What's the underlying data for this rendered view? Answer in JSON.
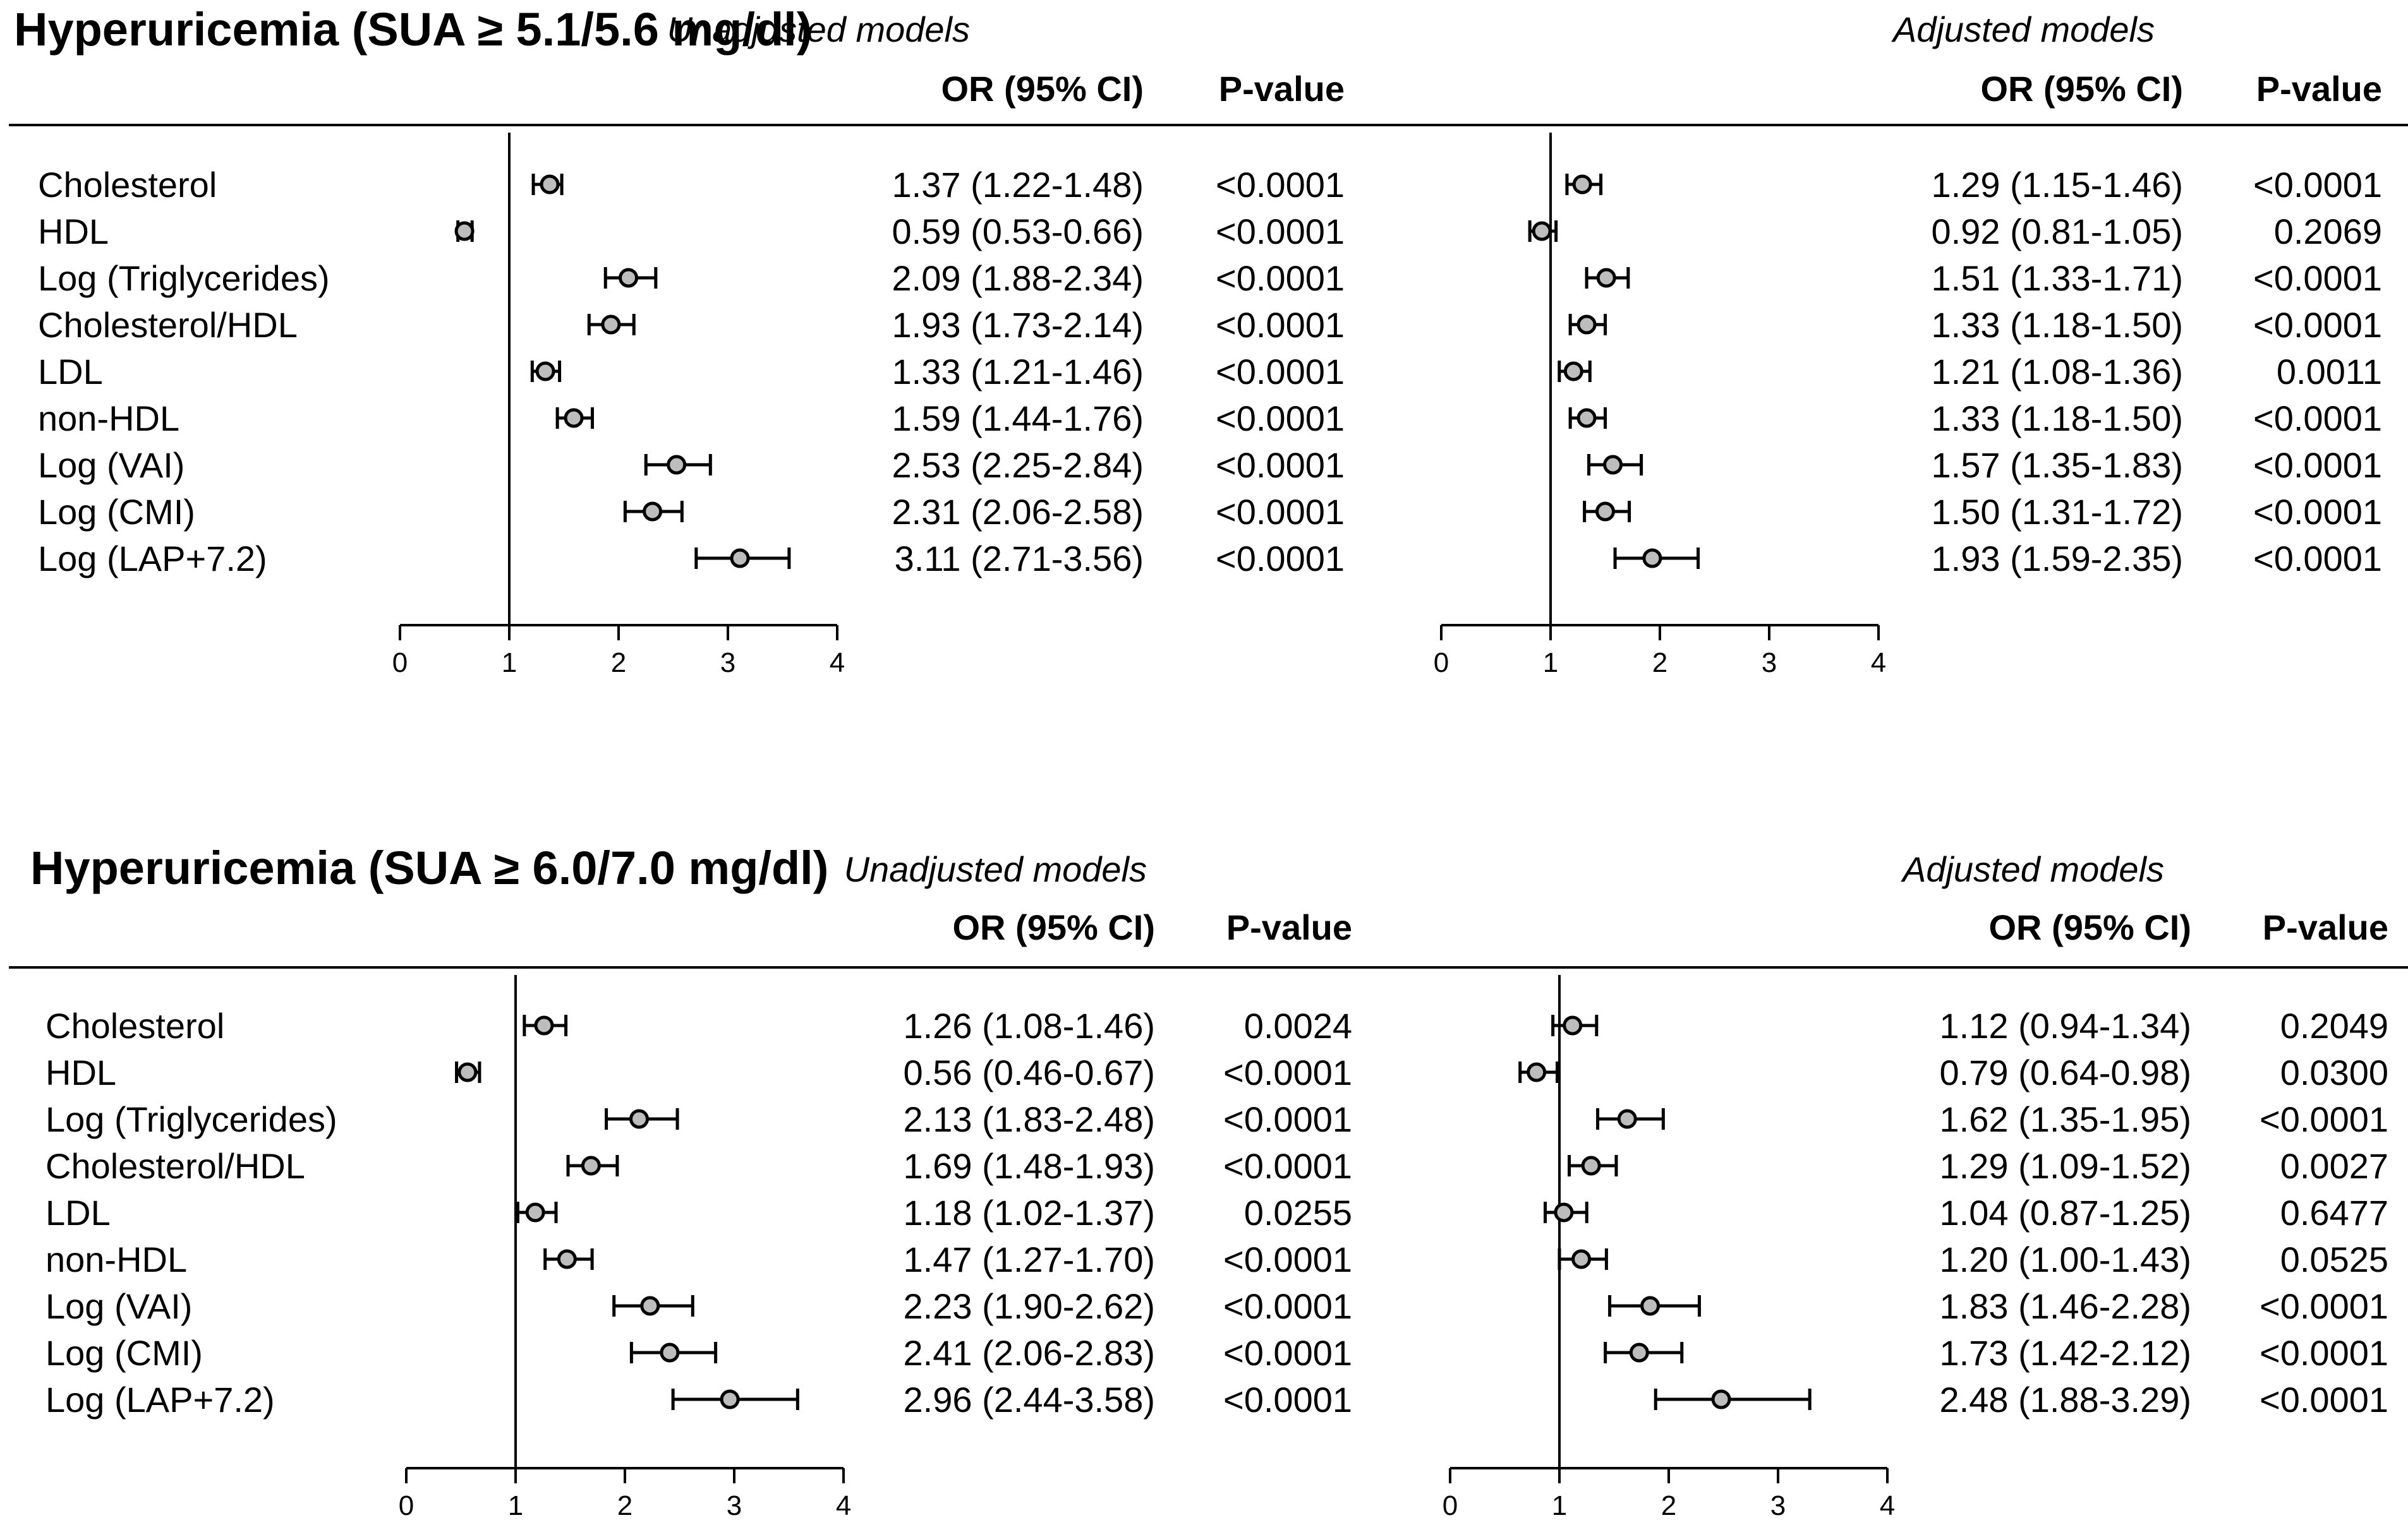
{
  "panels": [
    {
      "title": "Hyperuricemia (SUA ≥ 5.1/5.6 mg/dl)",
      "models": [
        {
          "model_label": "Unadjusted models",
          "or_header": "OR (95% CI)",
          "p_header": "P-value",
          "axis_ticks": [
            "0",
            "1",
            "2",
            "3",
            "4"
          ],
          "rows": [
            {
              "label": "Cholesterol",
              "or_text": "1.37 (1.22-1.48)",
              "or": 1.37,
              "lo": 1.22,
              "hi": 1.48,
              "p": "<0.0001"
            },
            {
              "label": "HDL",
              "or_text": "0.59 (0.53-0.66)",
              "or": 0.59,
              "lo": 0.53,
              "hi": 0.66,
              "p": "<0.0001"
            },
            {
              "label": "Log (Triglycerides)",
              "or_text": "2.09 (1.88-2.34)",
              "or": 2.09,
              "lo": 1.88,
              "hi": 2.34,
              "p": "<0.0001"
            },
            {
              "label": "Cholesterol/HDL",
              "or_text": "1.93 (1.73-2.14)",
              "or": 1.93,
              "lo": 1.73,
              "hi": 2.14,
              "p": "<0.0001"
            },
            {
              "label": "LDL",
              "or_text": "1.33 (1.21-1.46)",
              "or": 1.33,
              "lo": 1.21,
              "hi": 1.46,
              "p": "<0.0001"
            },
            {
              "label": "non-HDL",
              "or_text": "1.59 (1.44-1.76)",
              "or": 1.59,
              "lo": 1.44,
              "hi": 1.76,
              "p": "<0.0001"
            },
            {
              "label": "Log (VAI)",
              "or_text": "2.53 (2.25-2.84)",
              "or": 2.53,
              "lo": 2.25,
              "hi": 2.84,
              "p": "<0.0001"
            },
            {
              "label": "Log (CMI)",
              "or_text": "2.31 (2.06-2.58)",
              "or": 2.31,
              "lo": 2.06,
              "hi": 2.58,
              "p": "<0.0001"
            },
            {
              "label": "Log (LAP+7.2)",
              "or_text": "3.11 (2.71-3.56)",
              "or": 3.11,
              "lo": 2.71,
              "hi": 3.56,
              "p": "<0.0001"
            }
          ]
        },
        {
          "model_label": "Adjusted models",
          "or_header": "OR (95% CI)",
          "p_header": "P-value",
          "axis_ticks": [
            "0",
            "1",
            "2",
            "3",
            "4"
          ],
          "rows": [
            {
              "label": "Cholesterol",
              "or_text": "1.29 (1.15-1.46)",
              "or": 1.29,
              "lo": 1.15,
              "hi": 1.46,
              "p": "<0.0001"
            },
            {
              "label": "HDL",
              "or_text": "0.92 (0.81-1.05)",
              "or": 0.92,
              "lo": 0.81,
              "hi": 1.05,
              "p": "0.2069"
            },
            {
              "label": "Log (Triglycerides)",
              "or_text": "1.51 (1.33-1.71)",
              "or": 1.51,
              "lo": 1.33,
              "hi": 1.71,
              "p": "<0.0001"
            },
            {
              "label": "Cholesterol/HDL",
              "or_text": "1.33 (1.18-1.50)",
              "or": 1.33,
              "lo": 1.18,
              "hi": 1.5,
              "p": "<0.0001"
            },
            {
              "label": "LDL",
              "or_text": "1.21 (1.08-1.36)",
              "or": 1.21,
              "lo": 1.08,
              "hi": 1.36,
              "p": "0.0011"
            },
            {
              "label": "non-HDL",
              "or_text": "1.33 (1.18-1.50)",
              "or": 1.33,
              "lo": 1.18,
              "hi": 1.5,
              "p": "<0.0001"
            },
            {
              "label": "Log (VAI)",
              "or_text": "1.57 (1.35-1.83)",
              "or": 1.57,
              "lo": 1.35,
              "hi": 1.83,
              "p": "<0.0001"
            },
            {
              "label": "Log (CMI)",
              "or_text": "1.50 (1.31-1.72)",
              "or": 1.5,
              "lo": 1.31,
              "hi": 1.72,
              "p": "<0.0001"
            },
            {
              "label": "Log (LAP+7.2)",
              "or_text": "1.93 (1.59-2.35)",
              "or": 1.93,
              "lo": 1.59,
              "hi": 2.35,
              "p": "<0.0001"
            }
          ]
        }
      ]
    },
    {
      "title": "Hyperuricemia (SUA ≥ 6.0/7.0 mg/dl)",
      "models": [
        {
          "model_label": "Unadjusted models",
          "or_header": "OR (95% CI)",
          "p_header": "P-value",
          "axis_ticks": [
            "0",
            "1",
            "2",
            "3",
            "4"
          ],
          "rows": [
            {
              "label": "Cholesterol",
              "or_text": "1.26 (1.08-1.46)",
              "or": 1.26,
              "lo": 1.08,
              "hi": 1.46,
              "p": "0.0024"
            },
            {
              "label": "HDL",
              "or_text": "0.56 (0.46-0.67)",
              "or": 0.56,
              "lo": 0.46,
              "hi": 0.67,
              "p": "<0.0001"
            },
            {
              "label": "Log (Triglycerides)",
              "or_text": "2.13 (1.83-2.48)",
              "or": 2.13,
              "lo": 1.83,
              "hi": 2.48,
              "p": "<0.0001"
            },
            {
              "label": "Cholesterol/HDL",
              "or_text": "1.69 (1.48-1.93)",
              "or": 1.69,
              "lo": 1.48,
              "hi": 1.93,
              "p": "<0.0001"
            },
            {
              "label": "LDL",
              "or_text": "1.18 (1.02-1.37)",
              "or": 1.18,
              "lo": 1.02,
              "hi": 1.37,
              "p": "0.0255"
            },
            {
              "label": "non-HDL",
              "or_text": "1.47 (1.27-1.70)",
              "or": 1.47,
              "lo": 1.27,
              "hi": 1.7,
              "p": "<0.0001"
            },
            {
              "label": "Log (VAI)",
              "or_text": "2.23 (1.90-2.62)",
              "or": 2.23,
              "lo": 1.9,
              "hi": 2.62,
              "p": "<0.0001"
            },
            {
              "label": "Log (CMI)",
              "or_text": "2.41 (2.06-2.83)",
              "or": 2.41,
              "lo": 2.06,
              "hi": 2.83,
              "p": "<0.0001"
            },
            {
              "label": "Log (LAP+7.2)",
              "or_text": "2.96 (2.44-3.58)",
              "or": 2.96,
              "lo": 2.44,
              "hi": 3.58,
              "p": "<0.0001"
            }
          ]
        },
        {
          "model_label": "Adjusted models",
          "or_header": "OR (95% CI)",
          "p_header": "P-value",
          "axis_ticks": [
            "0",
            "1",
            "2",
            "3",
            "4"
          ],
          "rows": [
            {
              "label": "Cholesterol",
              "or_text": "1.12 (0.94-1.34)",
              "or": 1.12,
              "lo": 0.94,
              "hi": 1.34,
              "p": "0.2049"
            },
            {
              "label": "HDL",
              "or_text": "0.79 (0.64-0.98)",
              "or": 0.79,
              "lo": 0.64,
              "hi": 0.98,
              "p": "0.0300"
            },
            {
              "label": "Log (Triglycerides)",
              "or_text": "1.62 (1.35-1.95)",
              "or": 1.62,
              "lo": 1.35,
              "hi": 1.95,
              "p": "<0.0001"
            },
            {
              "label": "Cholesterol/HDL",
              "or_text": "1.29 (1.09-1.52)",
              "or": 1.29,
              "lo": 1.09,
              "hi": 1.52,
              "p": "0.0027"
            },
            {
              "label": "LDL",
              "or_text": "1.04 (0.87-1.25)",
              "or": 1.04,
              "lo": 0.87,
              "hi": 1.25,
              "p": "0.6477"
            },
            {
              "label": "non-HDL",
              "or_text": "1.20 (1.00-1.43)",
              "or": 1.2,
              "lo": 1.0,
              "hi": 1.43,
              "p": "0.0525"
            },
            {
              "label": "Log (VAI)",
              "or_text": "1.83 (1.46-2.28)",
              "or": 1.83,
              "lo": 1.46,
              "hi": 2.28,
              "p": "<0.0001"
            },
            {
              "label": "Log (CMI)",
              "or_text": "1.73 (1.42-2.12)",
              "or": 1.73,
              "lo": 1.42,
              "hi": 2.12,
              "p": "<0.0001"
            },
            {
              "label": "Log (LAP+7.2)",
              "or_text": "2.48 (1.88-3.29)",
              "or": 2.48,
              "lo": 1.88,
              "hi": 3.29,
              "p": "<0.0001"
            }
          ]
        }
      ]
    }
  ],
  "chart_data": [
    {
      "type": "forest",
      "title": "Hyperuricemia (SUA ≥ 5.1/5.6 mg/dl)",
      "subtitle": "Unadjusted models",
      "xlim": [
        0,
        4
      ],
      "reference_line": 1,
      "categories": [
        "Cholesterol",
        "HDL",
        "Log (Triglycerides)",
        "Cholesterol/HDL",
        "LDL",
        "non-HDL",
        "Log (VAI)",
        "Log (CMI)",
        "Log (LAP+7.2)"
      ],
      "values": [
        1.37,
        0.59,
        2.09,
        1.93,
        1.33,
        1.59,
        2.53,
        2.31,
        3.11
      ],
      "ci_low": [
        1.22,
        0.53,
        1.88,
        1.73,
        1.21,
        1.44,
        2.25,
        2.06,
        2.71
      ],
      "ci_high": [
        1.48,
        0.66,
        2.34,
        2.14,
        1.46,
        1.76,
        2.84,
        2.58,
        3.56
      ]
    },
    {
      "type": "forest",
      "title": "Hyperuricemia (SUA ≥ 5.1/5.6 mg/dl)",
      "subtitle": "Adjusted models",
      "xlim": [
        0,
        4
      ],
      "reference_line": 1,
      "categories": [
        "Cholesterol",
        "HDL",
        "Log (Triglycerides)",
        "Cholesterol/HDL",
        "LDL",
        "non-HDL",
        "Log (VAI)",
        "Log (CMI)",
        "Log (LAP+7.2)"
      ],
      "values": [
        1.29,
        0.92,
        1.51,
        1.33,
        1.21,
        1.33,
        1.57,
        1.5,
        1.93
      ],
      "ci_low": [
        1.15,
        0.81,
        1.33,
        1.18,
        1.08,
        1.18,
        1.35,
        1.31,
        1.59
      ],
      "ci_high": [
        1.46,
        1.05,
        1.71,
        1.5,
        1.36,
        1.5,
        1.83,
        1.72,
        2.35
      ]
    },
    {
      "type": "forest",
      "title": "Hyperuricemia (SUA ≥ 6.0/7.0 mg/dl)",
      "subtitle": "Unadjusted models",
      "xlim": [
        0,
        4
      ],
      "reference_line": 1,
      "categories": [
        "Cholesterol",
        "HDL",
        "Log (Triglycerides)",
        "Cholesterol/HDL",
        "LDL",
        "non-HDL",
        "Log (VAI)",
        "Log (CMI)",
        "Log (LAP+7.2)"
      ],
      "values": [
        1.26,
        0.56,
        2.13,
        1.69,
        1.18,
        1.47,
        2.23,
        2.41,
        2.96
      ],
      "ci_low": [
        1.08,
        0.46,
        1.83,
        1.48,
        1.02,
        1.27,
        1.9,
        2.06,
        2.44
      ],
      "ci_high": [
        1.46,
        0.67,
        2.48,
        1.93,
        1.37,
        1.7,
        2.62,
        2.83,
        3.58
      ]
    },
    {
      "type": "forest",
      "title": "Hyperuricemia (SUA ≥ 6.0/7.0 mg/dl)",
      "subtitle": "Adjusted models",
      "xlim": [
        0,
        4
      ],
      "reference_line": 1,
      "categories": [
        "Cholesterol",
        "HDL",
        "Log (Triglycerides)",
        "Cholesterol/HDL",
        "LDL",
        "non-HDL",
        "Log (VAI)",
        "Log (CMI)",
        "Log (LAP+7.2)"
      ],
      "values": [
        1.12,
        0.79,
        1.62,
        1.29,
        1.04,
        1.2,
        1.83,
        1.73,
        2.48
      ],
      "ci_low": [
        0.94,
        0.64,
        1.35,
        1.09,
        0.87,
        1.0,
        1.46,
        1.42,
        1.88
      ],
      "ci_high": [
        1.34,
        0.98,
        1.95,
        1.52,
        1.25,
        1.43,
        2.28,
        2.12,
        3.29
      ]
    }
  ]
}
